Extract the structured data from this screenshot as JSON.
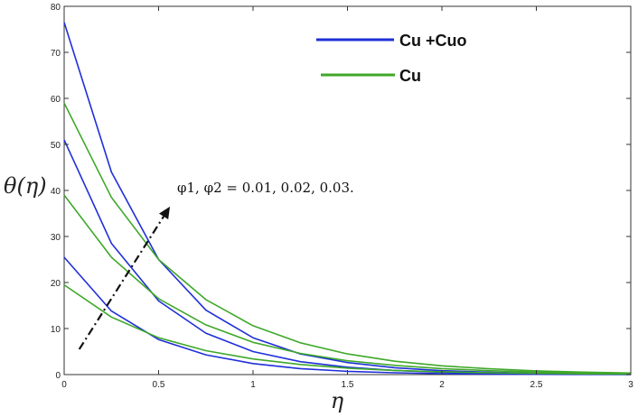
{
  "chart_data": {
    "type": "line",
    "xlabel": "η",
    "ylabel": "θ(η)",
    "xlim": [
      0,
      3
    ],
    "ylim": [
      0,
      80
    ],
    "xticks": [
      "0",
      "0.5",
      "1",
      "1.5",
      "2",
      "2.5",
      "3"
    ],
    "yticks": [
      "0",
      "10",
      "20",
      "30",
      "40",
      "50",
      "60",
      "70",
      "80"
    ],
    "grid": false,
    "legend": [
      {
        "label": "Cu +Cuo",
        "color": "#1f2fd8"
      },
      {
        "label": "Cu",
        "color": "#3fa82a"
      }
    ],
    "annotation": "φ1, φ2 = 0.01, 0.02, 0.03.",
    "series": [
      {
        "name": "Cu +Cuo",
        "color": "#1f2fd8",
        "x": [
          0,
          0.25,
          0.5,
          0.75,
          1,
          1.25,
          1.5,
          1.75,
          2,
          2.25,
          2.5,
          2.75,
          3
        ],
        "y": [
          25.5,
          13.8,
          7.6,
          4.3,
          2.4,
          1.3,
          0.7,
          0.4,
          0.2,
          0.1,
          0.06,
          0.03,
          0.02
        ]
      },
      {
        "name": "Cu +Cuo",
        "color": "#1f2fd8",
        "x": [
          0,
          0.25,
          0.5,
          0.75,
          1,
          1.25,
          1.5,
          1.75,
          2,
          2.25,
          2.5,
          2.75,
          3
        ],
        "y": [
          51,
          28.5,
          16,
          9,
          5,
          2.8,
          1.6,
          0.9,
          0.5,
          0.3,
          0.17,
          0.1,
          0.05
        ]
      },
      {
        "name": "Cu +Cuo",
        "color": "#1f2fd8",
        "x": [
          0,
          0.25,
          0.5,
          0.75,
          1,
          1.25,
          1.5,
          1.75,
          2,
          2.25,
          2.5,
          2.75,
          3
        ],
        "y": [
          76.5,
          44,
          25,
          14,
          8,
          4.5,
          2.6,
          1.5,
          0.85,
          0.5,
          0.28,
          0.16,
          0.09
        ]
      },
      {
        "name": "Cu",
        "color": "#3fa82a",
        "x": [
          0,
          0.25,
          0.5,
          0.75,
          1,
          1.25,
          1.5,
          1.75,
          2,
          2.25,
          2.5,
          2.75,
          3
        ],
        "y": [
          19.5,
          12.5,
          8,
          5.2,
          3.4,
          2.2,
          1.4,
          0.9,
          0.6,
          0.38,
          0.25,
          0.16,
          0.1
        ]
      },
      {
        "name": "Cu",
        "color": "#3fa82a",
        "x": [
          0,
          0.25,
          0.5,
          0.75,
          1,
          1.25,
          1.5,
          1.75,
          2,
          2.25,
          2.5,
          2.75,
          3
        ],
        "y": [
          39,
          25.5,
          16.5,
          10.8,
          7,
          4.6,
          3,
          2,
          1.3,
          0.85,
          0.55,
          0.36,
          0.24
        ]
      },
      {
        "name": "Cu",
        "color": "#3fa82a",
        "x": [
          0,
          0.25,
          0.5,
          0.75,
          1,
          1.25,
          1.5,
          1.75,
          2,
          2.25,
          2.5,
          2.75,
          3
        ],
        "y": [
          59,
          38.5,
          25,
          16.3,
          10.6,
          6.9,
          4.5,
          2.9,
          1.9,
          1.25,
          0.8,
          0.52,
          0.34
        ]
      }
    ],
    "arrow": {
      "from": [
        0.08,
        5.5
      ],
      "to": [
        0.56,
        36.5
      ]
    }
  }
}
